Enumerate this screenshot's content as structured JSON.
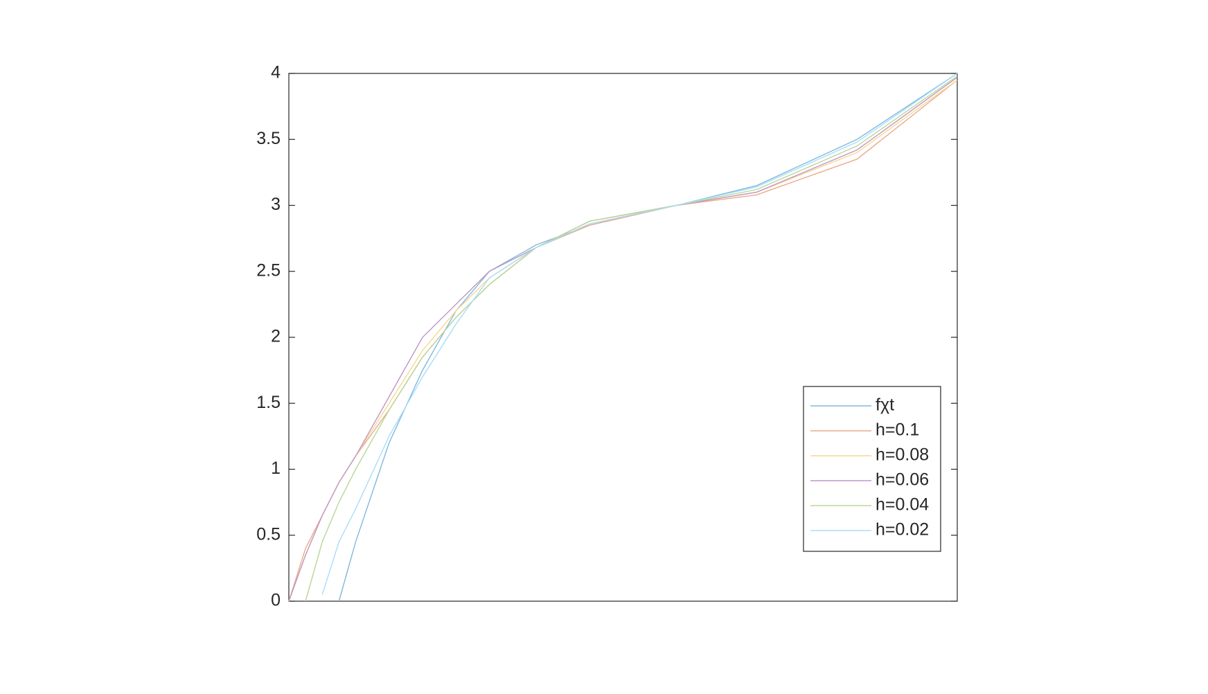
{
  "chart_data": {
    "type": "line",
    "x": [
      0,
      0.025,
      0.05,
      0.075,
      0.1,
      0.15,
      0.2,
      0.25,
      0.3,
      0.37,
      0.45,
      0.58,
      0.7,
      0.85,
      1
    ],
    "xlim": [
      0,
      1
    ],
    "ylim": [
      0,
      4
    ],
    "yticks": [
      0,
      0.5,
      1,
      1.5,
      2,
      2.5,
      3,
      3.5,
      4
    ],
    "legend": "lower right",
    "series": [
      {
        "name": "fχt",
        "color": "#7fb8de",
        "values": [
          null,
          null,
          null,
          0,
          0.45,
          1.2,
          1.75,
          2.2,
          2.5,
          2.7,
          2.85,
          3.0,
          3.15,
          3.5,
          4.0
        ]
      },
      {
        "name": "h=0.1",
        "color": "#eca98c",
        "values": [
          0,
          0.4,
          0.65,
          0.9,
          1.1,
          1.45,
          1.85,
          2.15,
          2.4,
          2.68,
          2.85,
          3.0,
          3.08,
          3.35,
          3.95
        ]
      },
      {
        "name": "h=0.08",
        "color": "#f6d88f",
        "values": [
          0,
          0.35,
          0.65,
          0.9,
          1.1,
          1.5,
          1.9,
          2.2,
          2.45,
          2.68,
          2.88,
          3.0,
          3.1,
          3.4,
          3.95
        ]
      },
      {
        "name": "h=0.06",
        "color": "#be97c6",
        "values": [
          0,
          0.35,
          0.65,
          0.9,
          1.1,
          1.55,
          2.0,
          2.25,
          2.5,
          2.68,
          2.88,
          3.0,
          3.1,
          3.42,
          3.97
        ]
      },
      {
        "name": "h=0.04",
        "color": "#bbd597",
        "values": [
          null,
          0,
          0.45,
          0.75,
          1.0,
          1.45,
          1.85,
          2.15,
          2.4,
          2.68,
          2.88,
          3.0,
          3.12,
          3.45,
          3.98
        ]
      },
      {
        "name": "h=0.02",
        "color": "#a6def6",
        "values": [
          null,
          null,
          0.05,
          0.45,
          0.7,
          1.25,
          1.7,
          2.1,
          2.45,
          2.68,
          2.86,
          3.0,
          3.14,
          3.48,
          4.0
        ]
      }
    ]
  }
}
